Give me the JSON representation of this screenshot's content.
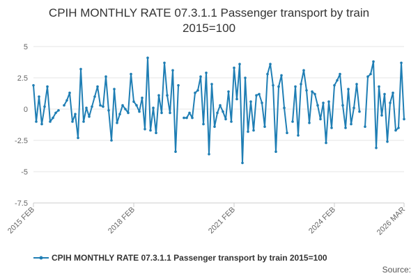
{
  "chart_data": {
    "type": "line",
    "title": "CPIH MONTHLY RATE 07.3.1.1 Passenger transport by train",
    "subtitle": "2015=100",
    "xlabel": "",
    "ylabel": "",
    "ylim": [
      -7.5,
      5
    ],
    "yticks": [
      "5",
      "2.5",
      "0",
      "-2.5",
      "-5",
      "-7.5"
    ],
    "xticks": [
      "2015 FEB",
      "2018 FEB",
      "2021 FEB",
      "2024 FEB",
      "2026 MAR"
    ],
    "grid": true,
    "legend_position": "bottom",
    "series": [
      {
        "name": "CPIH MONTHLY RATE 07.3.1.1 Passenger transport by train 2015=100",
        "color": "#1f7eb4",
        "x": [
          "2015-02",
          "2015-03",
          "2015-04",
          "2015-05",
          "2015-06",
          "2015-07",
          "2015-08",
          "2015-09",
          "2015-10",
          "2015-11",
          "2015-12",
          "2016-01",
          "2016-02",
          "2016-03",
          "2016-04",
          "2016-05",
          "2016-06",
          "2016-07",
          "2016-08",
          "2016-09",
          "2016-10",
          "2016-11",
          "2016-12",
          "2017-01",
          "2017-02",
          "2017-03",
          "2017-04",
          "2017-05",
          "2017-06",
          "2017-07",
          "2017-08",
          "2017-09",
          "2017-10",
          "2017-11",
          "2017-12",
          "2018-01",
          "2018-02",
          "2018-03",
          "2018-04",
          "2018-05",
          "2018-06",
          "2018-07",
          "2018-08",
          "2018-09",
          "2018-10",
          "2018-11",
          "2018-12",
          "2019-01",
          "2019-02",
          "2019-03",
          "2019-04",
          "2019-05",
          "2019-06",
          "2019-07",
          "2019-08",
          "2019-09",
          "2019-10",
          "2019-11",
          "2019-12",
          "2020-01",
          "2020-02",
          "2020-03",
          "2020-04",
          "2020-05",
          "2020-06",
          "2020-07",
          "2020-08",
          "2020-09",
          "2020-10",
          "2020-11",
          "2020-12",
          "2021-01",
          "2021-02",
          "2021-03",
          "2021-04",
          "2021-05",
          "2021-06",
          "2021-07",
          "2021-08",
          "2021-09",
          "2021-10",
          "2021-11",
          "2021-12",
          "2022-01",
          "2022-02",
          "2022-03",
          "2022-04",
          "2022-05",
          "2022-06",
          "2022-07",
          "2022-08",
          "2022-09",
          "2022-10",
          "2022-11",
          "2022-12",
          "2023-01",
          "2023-02",
          "2023-03",
          "2023-04",
          "2023-05",
          "2023-06",
          "2023-07",
          "2023-08",
          "2023-09",
          "2023-10",
          "2023-11",
          "2023-12",
          "2024-01",
          "2024-02",
          "2024-03",
          "2024-04",
          "2024-05",
          "2024-06",
          "2024-07",
          "2024-08",
          "2024-09",
          "2024-10",
          "2024-11",
          "2024-12",
          "2025-01",
          "2025-02",
          "2025-03",
          "2025-04",
          "2025-05",
          "2025-06",
          "2025-07",
          "2025-08",
          "2025-09",
          "2025-10",
          "2025-11",
          "2025-12",
          "2026-01",
          "2026-02",
          "2026-03"
        ],
        "values": [
          1.9,
          -1.0,
          1.0,
          -1.2,
          0.2,
          1.8,
          -1.0,
          -0.7,
          -0.3,
          -0.1,
          null,
          0.3,
          0.7,
          1.3,
          -1.0,
          -0.4,
          -2.3,
          3.2,
          -1.0,
          0.1,
          -0.6,
          0.2,
          1.0,
          1.8,
          0.3,
          0.2,
          2.6,
          -0.1,
          -2.5,
          1.6,
          -1.1,
          -0.4,
          0.3,
          0.0,
          -0.3,
          2.8,
          0.6,
          0.3,
          -0.2,
          0.9,
          -1.6,
          4.1,
          -1.7,
          0.1,
          -1.9,
          1.1,
          -0.3,
          3.7,
          1.1,
          -0.3,
          3.1,
          -3.4,
          1.9,
          null,
          -0.7,
          -0.7,
          -0.3,
          -0.7,
          1.3,
          1.5,
          2.6,
          -1.2,
          2.9,
          -3.6,
          2.0,
          -1.4,
          -0.3,
          0.3,
          -0.2,
          -0.8,
          1.4,
          -1.0,
          3.3,
          0.8,
          3.6,
          -4.3,
          2.5,
          -1.8,
          0.6,
          -1.7,
          1.1,
          1.2,
          0.5,
          -1.4,
          2.8,
          3.6,
          1.9,
          -3.4,
          1.8,
          2.7,
          0.1,
          -1.9,
          null,
          -1.0,
          1.8,
          -2.1,
          2.0,
          3.1,
          1.5,
          -1.1,
          1.4,
          1.2,
          0.3,
          -0.8,
          0.5,
          -2.7,
          0.6,
          -1.5,
          1.9,
          2.3,
          2.8,
          0.3,
          -1.5,
          1.6,
          -1.2,
          0.1,
          2.0,
          -0.2,
          null,
          -1.4,
          2.6,
          2.8,
          3.8,
          -3.1,
          1.8,
          -0.5,
          1.2,
          -2.6,
          0.5,
          1.3,
          -1.7,
          -1.5,
          3.7,
          -0.8
        ]
      }
    ]
  },
  "legend": {
    "label": "CPIH MONTHLY RATE 07.3.1.1 Passenger transport by train 2015=100"
  },
  "source": {
    "label": "Source:"
  }
}
